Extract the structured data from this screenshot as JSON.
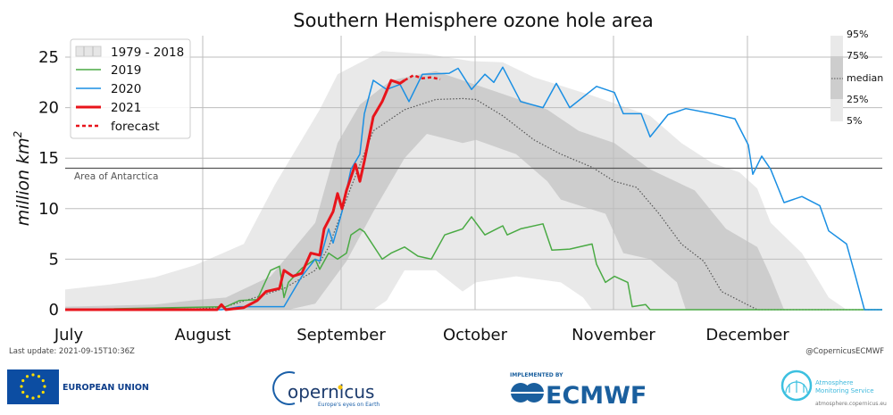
{
  "chart_data": {
    "type": "area",
    "title": "Southern Hemisphere ozone hole area",
    "ylabel": "million km",
    "ylabel_sup": "2",
    "ylim": [
      0,
      27
    ],
    "yticks": [
      "0",
      "5",
      "10",
      "15",
      "20",
      "25"
    ],
    "xticks": [
      "July",
      "August",
      "September",
      "October",
      "November",
      "December"
    ],
    "grid": true,
    "legend_placement": "top-left",
    "reference_line": {
      "value": 14,
      "label": "Area of Antarctica"
    },
    "legend": [
      "1979 - 2018",
      "2019",
      "2020",
      "2021",
      "forecast"
    ],
    "percentile_key": {
      "labels": [
        "95%",
        "75%",
        "median",
        "25%",
        "5%"
      ]
    },
    "colors": {
      "y2019": "#4aaa44",
      "y2020": "#1a8fe3",
      "y2021": "#e8141b",
      "band_outer": "#e9e9e9",
      "band_inner": "#cdcdcd",
      "median": "#555555"
    },
    "climatology_1979_2018": {
      "p95": [
        [
          "Jul 1",
          2.0
        ],
        [
          "Jul 11",
          2.5
        ],
        [
          "Jul 21",
          3.2
        ],
        [
          "Jul 30",
          4.4
        ],
        [
          "Aug 10",
          6.5
        ],
        [
          "Aug 17",
          12.4
        ],
        [
          "Aug 27",
          19.8
        ],
        [
          "Aug 31",
          23.3
        ],
        [
          "Sep 10",
          25.6
        ],
        [
          "Sep 20",
          25.3
        ],
        [
          "Sep 30",
          24.6
        ],
        [
          "Oct 7",
          24.5
        ],
        [
          "Oct 14",
          23.0
        ],
        [
          "Oct 27",
          21.2
        ],
        [
          "Nov 9",
          19.2
        ],
        [
          "Nov 16",
          16.5
        ],
        [
          "Nov 23",
          14.5
        ],
        [
          "Nov 29",
          13.6
        ],
        [
          "Dec 3",
          12.0
        ],
        [
          "Dec 6",
          8.6
        ],
        [
          "Dec 13",
          5.6
        ],
        [
          "Dec 19",
          1.2
        ],
        [
          "Dec 23",
          0
        ],
        [
          "Dec 31",
          0
        ]
      ],
      "p75": [
        [
          "Jul 1",
          0.3
        ],
        [
          "Jul 21",
          0.5
        ],
        [
          "Jul 31",
          1.0
        ],
        [
          "Aug 6",
          1.2
        ],
        [
          "Aug 16",
          3.3
        ],
        [
          "Aug 26",
          8.6
        ],
        [
          "Aug 31",
          16.5
        ],
        [
          "Sep 5",
          20.3
        ],
        [
          "Sep 12",
          22.7
        ],
        [
          "Sep 22",
          23.6
        ],
        [
          "Oct 2",
          22.1
        ],
        [
          "Oct 10",
          20.9
        ],
        [
          "Oct 17",
          19.8
        ],
        [
          "Oct 24",
          17.7
        ],
        [
          "Nov 1",
          16.5
        ],
        [
          "Nov 9",
          13.9
        ],
        [
          "Nov 19",
          11.8
        ],
        [
          "Nov 26",
          8.0
        ],
        [
          "Dec 3",
          6.2
        ],
        [
          "Dec 6",
          3.3
        ],
        [
          "Dec 9",
          0
        ],
        [
          "Dec 31",
          0
        ]
      ],
      "median": [
        [
          "Jul 1",
          0
        ],
        [
          "Jul 31",
          0.1
        ],
        [
          "Aug 6",
          0.3
        ],
        [
          "Aug 19",
          2.1
        ],
        [
          "Aug 26",
          3.9
        ],
        [
          "Aug 29",
          6.2
        ],
        [
          "Sep 3",
          12.1
        ],
        [
          "Sep 8",
          17.7
        ],
        [
          "Sep 15",
          19.8
        ],
        [
          "Sep 22",
          20.8
        ],
        [
          "Sep 28",
          20.9
        ],
        [
          "Oct 1",
          20.8
        ],
        [
          "Oct 7",
          19.2
        ],
        [
          "Oct 14",
          16.8
        ],
        [
          "Oct 20",
          15.4
        ],
        [
          "Oct 27",
          14.1
        ],
        [
          "Nov 1",
          12.7
        ],
        [
          "Nov 6",
          12.1
        ],
        [
          "Nov 11",
          9.5
        ],
        [
          "Nov 16",
          6.5
        ],
        [
          "Nov 21",
          4.8
        ],
        [
          "Nov 25",
          1.8
        ],
        [
          "Nov 29",
          0.9
        ],
        [
          "Dec 3",
          0
        ],
        [
          "Dec 31",
          0
        ]
      ],
      "p25": [
        [
          "Jul 1",
          0
        ],
        [
          "Aug 20",
          0
        ],
        [
          "Aug 26",
          0.6
        ],
        [
          "Sep 2",
          4.8
        ],
        [
          "Sep 8",
          9.7
        ],
        [
          "Sep 15",
          15.0
        ],
        [
          "Sep 20",
          17.4
        ],
        [
          "Sep 28",
          16.5
        ],
        [
          "Oct 1",
          16.8
        ],
        [
          "Oct 10",
          15.4
        ],
        [
          "Oct 17",
          12.7
        ],
        [
          "Oct 20",
          10.9
        ],
        [
          "Oct 30",
          9.5
        ],
        [
          "Nov 3",
          5.6
        ],
        [
          "Nov 9",
          5.0
        ],
        [
          "Nov 15",
          2.7
        ],
        [
          "Nov 17",
          0
        ],
        [
          "Dec 31",
          0
        ]
      ],
      "p5": [
        [
          "Jul 1",
          0
        ],
        [
          "Sep 8",
          0
        ],
        [
          "Sep 11",
          0.9
        ],
        [
          "Sep 15",
          3.9
        ],
        [
          "Sep 22",
          3.9
        ],
        [
          "Sep 28",
          1.8
        ],
        [
          "Oct 1",
          2.7
        ],
        [
          "Oct 10",
          3.3
        ],
        [
          "Oct 20",
          2.7
        ],
        [
          "Oct 25",
          1.2
        ],
        [
          "Oct 27",
          0
        ],
        [
          "Dec 31",
          0
        ]
      ]
    },
    "series": [
      {
        "name": "2019",
        "points": [
          [
            "Jul 1",
            0
          ],
          [
            "Aug 6",
            0.3
          ],
          [
            "Aug 9",
            0.9
          ],
          [
            "Aug 13",
            1.0
          ],
          [
            "Aug 16",
            3.9
          ],
          [
            "Aug 18",
            4.3
          ],
          [
            "Aug 19",
            1.2
          ],
          [
            "Aug 20",
            2.7
          ],
          [
            "Aug 23",
            4.1
          ],
          [
            "Aug 26",
            5.0
          ],
          [
            "Aug 27",
            4.0
          ],
          [
            "Aug 29",
            5.6
          ],
          [
            "Aug 31",
            5.0
          ],
          [
            "Sep 2",
            5.6
          ],
          [
            "Sep 3",
            7.4
          ],
          [
            "Sep 5",
            8.0
          ],
          [
            "Sep 6",
            7.7
          ],
          [
            "Sep 10",
            5.0
          ],
          [
            "Sep 12",
            5.6
          ],
          [
            "Sep 15",
            6.2
          ],
          [
            "Sep 18",
            5.3
          ],
          [
            "Sep 21",
            5.0
          ],
          [
            "Sep 24",
            7.4
          ],
          [
            "Sep 28",
            8.0
          ],
          [
            "Sep 30",
            9.2
          ],
          [
            "Oct 3",
            7.4
          ],
          [
            "Oct 7",
            8.3
          ],
          [
            "Oct 8",
            7.4
          ],
          [
            "Oct 11",
            8.0
          ],
          [
            "Oct 16",
            8.5
          ],
          [
            "Oct 18",
            5.9
          ],
          [
            "Oct 22",
            6.0
          ],
          [
            "Oct 27",
            6.5
          ],
          [
            "Oct 28",
            4.5
          ],
          [
            "Oct 30",
            2.7
          ],
          [
            "Nov 1",
            3.3
          ],
          [
            "Nov 4",
            2.7
          ],
          [
            "Nov 5",
            0.3
          ],
          [
            "Nov 8",
            0.5
          ],
          [
            "Nov 9",
            0
          ],
          [
            "Dec 31",
            0
          ]
        ]
      },
      {
        "name": "2020",
        "points": [
          [
            "Jul 1",
            0
          ],
          [
            "Aug 5",
            0
          ],
          [
            "Aug 9",
            0.3
          ],
          [
            "Aug 19",
            0.3
          ],
          [
            "Aug 23",
            3.3
          ],
          [
            "Aug 26",
            5.0
          ],
          [
            "Aug 27",
            4.8
          ],
          [
            "Aug 29",
            8.0
          ],
          [
            "Aug 30",
            6.6
          ],
          [
            "Sep 1",
            9.7
          ],
          [
            "Sep 3",
            13.9
          ],
          [
            "Sep 5",
            15.4
          ],
          [
            "Sep 6",
            19.4
          ],
          [
            "Sep 8",
            22.7
          ],
          [
            "Sep 11",
            21.8
          ],
          [
            "Sep 14",
            22.3
          ],
          [
            "Sep 16",
            20.6
          ],
          [
            "Sep 19",
            23.3
          ],
          [
            "Sep 25",
            23.4
          ],
          [
            "Sep 27",
            23.9
          ],
          [
            "Sep 30",
            21.8
          ],
          [
            "Oct 3",
            23.3
          ],
          [
            "Oct 5",
            22.5
          ],
          [
            "Oct 7",
            24.0
          ],
          [
            "Oct 11",
            20.6
          ],
          [
            "Oct 16",
            20.0
          ],
          [
            "Oct 19",
            22.4
          ],
          [
            "Oct 22",
            20.0
          ],
          [
            "Oct 28",
            22.1
          ],
          [
            "Nov 1",
            21.5
          ],
          [
            "Nov 3",
            19.4
          ],
          [
            "Nov 7",
            19.4
          ],
          [
            "Nov 9",
            17.1
          ],
          [
            "Nov 13",
            19.3
          ],
          [
            "Nov 17",
            19.9
          ],
          [
            "Nov 23",
            19.4
          ],
          [
            "Nov 28",
            18.9
          ],
          [
            "Dec 1",
            16.3
          ],
          [
            "Dec 2",
            13.4
          ],
          [
            "Dec 4",
            15.2
          ],
          [
            "Dec 6",
            13.9
          ],
          [
            "Dec 9",
            10.6
          ],
          [
            "Dec 13",
            11.2
          ],
          [
            "Dec 17",
            10.3
          ],
          [
            "Dec 19",
            7.8
          ],
          [
            "Dec 23",
            6.5
          ],
          [
            "Dec 25",
            3.3
          ],
          [
            "Dec 27",
            0
          ],
          [
            "Dec 31",
            0
          ]
        ]
      },
      {
        "name": "2021",
        "points": [
          [
            "Jul 1",
            0
          ],
          [
            "Aug 4",
            0
          ],
          [
            "Aug 5",
            0.5
          ],
          [
            "Aug 6",
            0
          ],
          [
            "Aug 10",
            0.2
          ],
          [
            "Aug 13",
            0.9
          ],
          [
            "Aug 15",
            1.8
          ],
          [
            "Aug 18",
            2.1
          ],
          [
            "Aug 19",
            3.9
          ],
          [
            "Aug 21",
            3.3
          ],
          [
            "Aug 23",
            3.6
          ],
          [
            "Aug 25",
            5.6
          ],
          [
            "Aug 27",
            5.4
          ],
          [
            "Aug 28",
            8.0
          ],
          [
            "Aug 30",
            9.7
          ],
          [
            "Aug 31",
            11.5
          ],
          [
            "Sep 1",
            10.0
          ],
          [
            "Sep 2",
            11.8
          ],
          [
            "Sep 4",
            14.4
          ],
          [
            "Sep 5",
            12.7
          ],
          [
            "Sep 6",
            14.7
          ],
          [
            "Sep 8",
            19.1
          ],
          [
            "Sep 10",
            20.6
          ],
          [
            "Sep 12",
            22.7
          ],
          [
            "Sep 14",
            22.4
          ],
          [
            "Sep 15",
            22.7
          ]
        ]
      },
      {
        "name": "forecast",
        "points": [
          [
            "Sep 15",
            22.7
          ],
          [
            "Sep 17",
            23.2
          ],
          [
            "Sep 19",
            22.9
          ],
          [
            "Sep 21",
            23.0
          ],
          [
            "Sep 23",
            22.8
          ]
        ]
      }
    ]
  },
  "footer": {
    "last_update": "Last update: 2021-09-15T10:36Z",
    "credit": "@CopernicusECMWF"
  },
  "logos": {
    "eu": "EUROPEAN UNION",
    "copernicus": "opernicus",
    "copernicus_c": "C",
    "copernicus_tagline": "Europe's eyes on Earth",
    "ecmwf_prefix": "IMPLEMENTED BY",
    "ecmwf": "ECMWF",
    "cams_line1": "Atmosphere",
    "cams_line2": "Monitoring Service",
    "cams_url": "atmosphere.copernicus.eu"
  }
}
